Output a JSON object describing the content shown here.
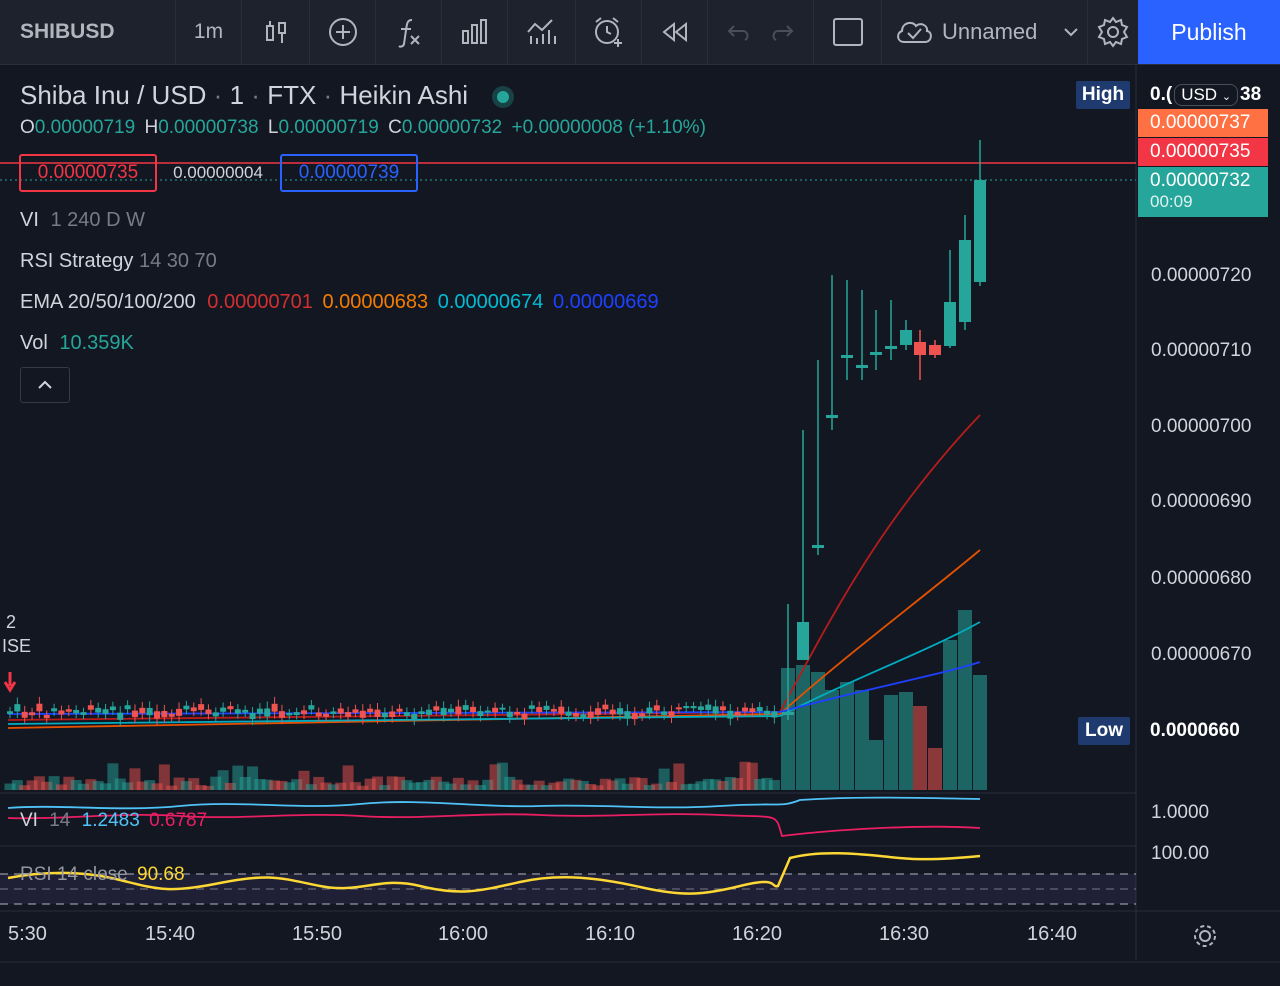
{
  "toolbar": {
    "symbol": "SHIBUSD",
    "interval": "1m",
    "layout_name": "Unnamed",
    "publish_label": "Publish"
  },
  "header": {
    "title": "Shiba Inu / USD",
    "sep1": "·",
    "interval": "1",
    "sep2": "·",
    "exchange": "FTX",
    "sep3": "·",
    "chart_style": "Heikin Ashi",
    "ohlc": {
      "o_label": "O",
      "o": "0.00000719",
      "h_label": "H",
      "h": "0.00000738",
      "l_label": "L",
      "l": "0.00000719",
      "c_label": "C",
      "c": "0.00000732",
      "change": "+0.00000008 (+1.10%)"
    }
  },
  "trade_panel": {
    "sell": "0.00000735",
    "spread": "0.00000004",
    "buy": "0.00000739"
  },
  "indicators": {
    "vi_title": "VI",
    "vi_params": "1 240 D W",
    "rsi_strategy_title": "RSI Strategy",
    "rsi_strategy_params": "14 30 70",
    "ema_title": "EMA 20/50/100/200",
    "ema20": "0.00000701",
    "ema50": "0.00000683",
    "ema100": "0.00000674",
    "ema200": "0.00000669",
    "vol_title": "Vol",
    "vol_value": "10.359K",
    "left_marker_top": "2",
    "left_marker_bottom": "ISE"
  },
  "price_axis": {
    "high_label": "High",
    "high_value_partial_left": "0.(",
    "currency": "USD",
    "high_value_partial_right": "38",
    "label_ask": "0.00000737",
    "label_bid": "0.00000735",
    "label_last": "0.00000732",
    "countdown": "00:09",
    "ticks": [
      "0.00000720",
      "0.00000710",
      "0.00000700",
      "0.00000690",
      "0.00000680",
      "0.00000670"
    ],
    "low_label": "Low",
    "low_value": "0.0000660"
  },
  "vi_pane": {
    "title": "VI",
    "param": "14",
    "plus": "1.2483",
    "minus": "0.6787",
    "axis": "1.0000"
  },
  "rsi_pane": {
    "title": "RSI 14 close",
    "value": "90.68",
    "axis": "100.00"
  },
  "time_axis": {
    "ticks": [
      "5:30",
      "15:40",
      "15:50",
      "16:00",
      "16:10",
      "16:20",
      "16:30",
      "16:40"
    ]
  },
  "colors": {
    "up": "#26a69a",
    "down": "#ef5350",
    "ema20": "#d32f2f",
    "ema50": "#f57c00",
    "ema100": "#00bcd4",
    "ema200": "#1e40ff",
    "accent": "#2962ff",
    "rsi": "#fdd835",
    "vi_plus": "#4fc3f7",
    "vi_minus": "#e91e63"
  }
}
